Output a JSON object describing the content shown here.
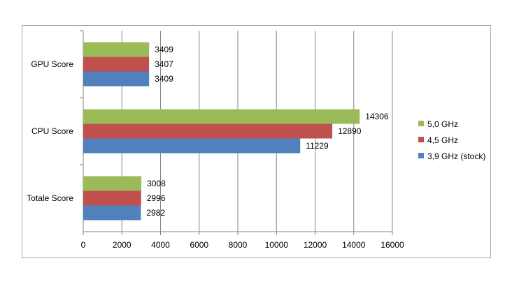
{
  "chart_data": {
    "type": "bar",
    "orientation": "horizontal",
    "title": "",
    "xlabel": "",
    "ylabel": "",
    "categories": [
      "Totale Score",
      "CPU Score",
      "GPU Score"
    ],
    "series": [
      {
        "name": "3,9 GHz (stock)",
        "color": "#4f81bd",
        "values": [
          2982,
          11229,
          3409
        ]
      },
      {
        "name": "4,5 GHz",
        "color": "#c0504d",
        "values": [
          2996,
          12890,
          3407
        ]
      },
      {
        "name": "5,0 GHz",
        "color": "#9bbb59",
        "values": [
          3008,
          14306,
          3409
        ]
      }
    ],
    "xlim": [
      0,
      16000
    ],
    "xticks": [
      0,
      2000,
      4000,
      6000,
      8000,
      10000,
      12000,
      14000,
      16000
    ],
    "grid": "vertical",
    "legend": "right",
    "data_labels": true
  }
}
